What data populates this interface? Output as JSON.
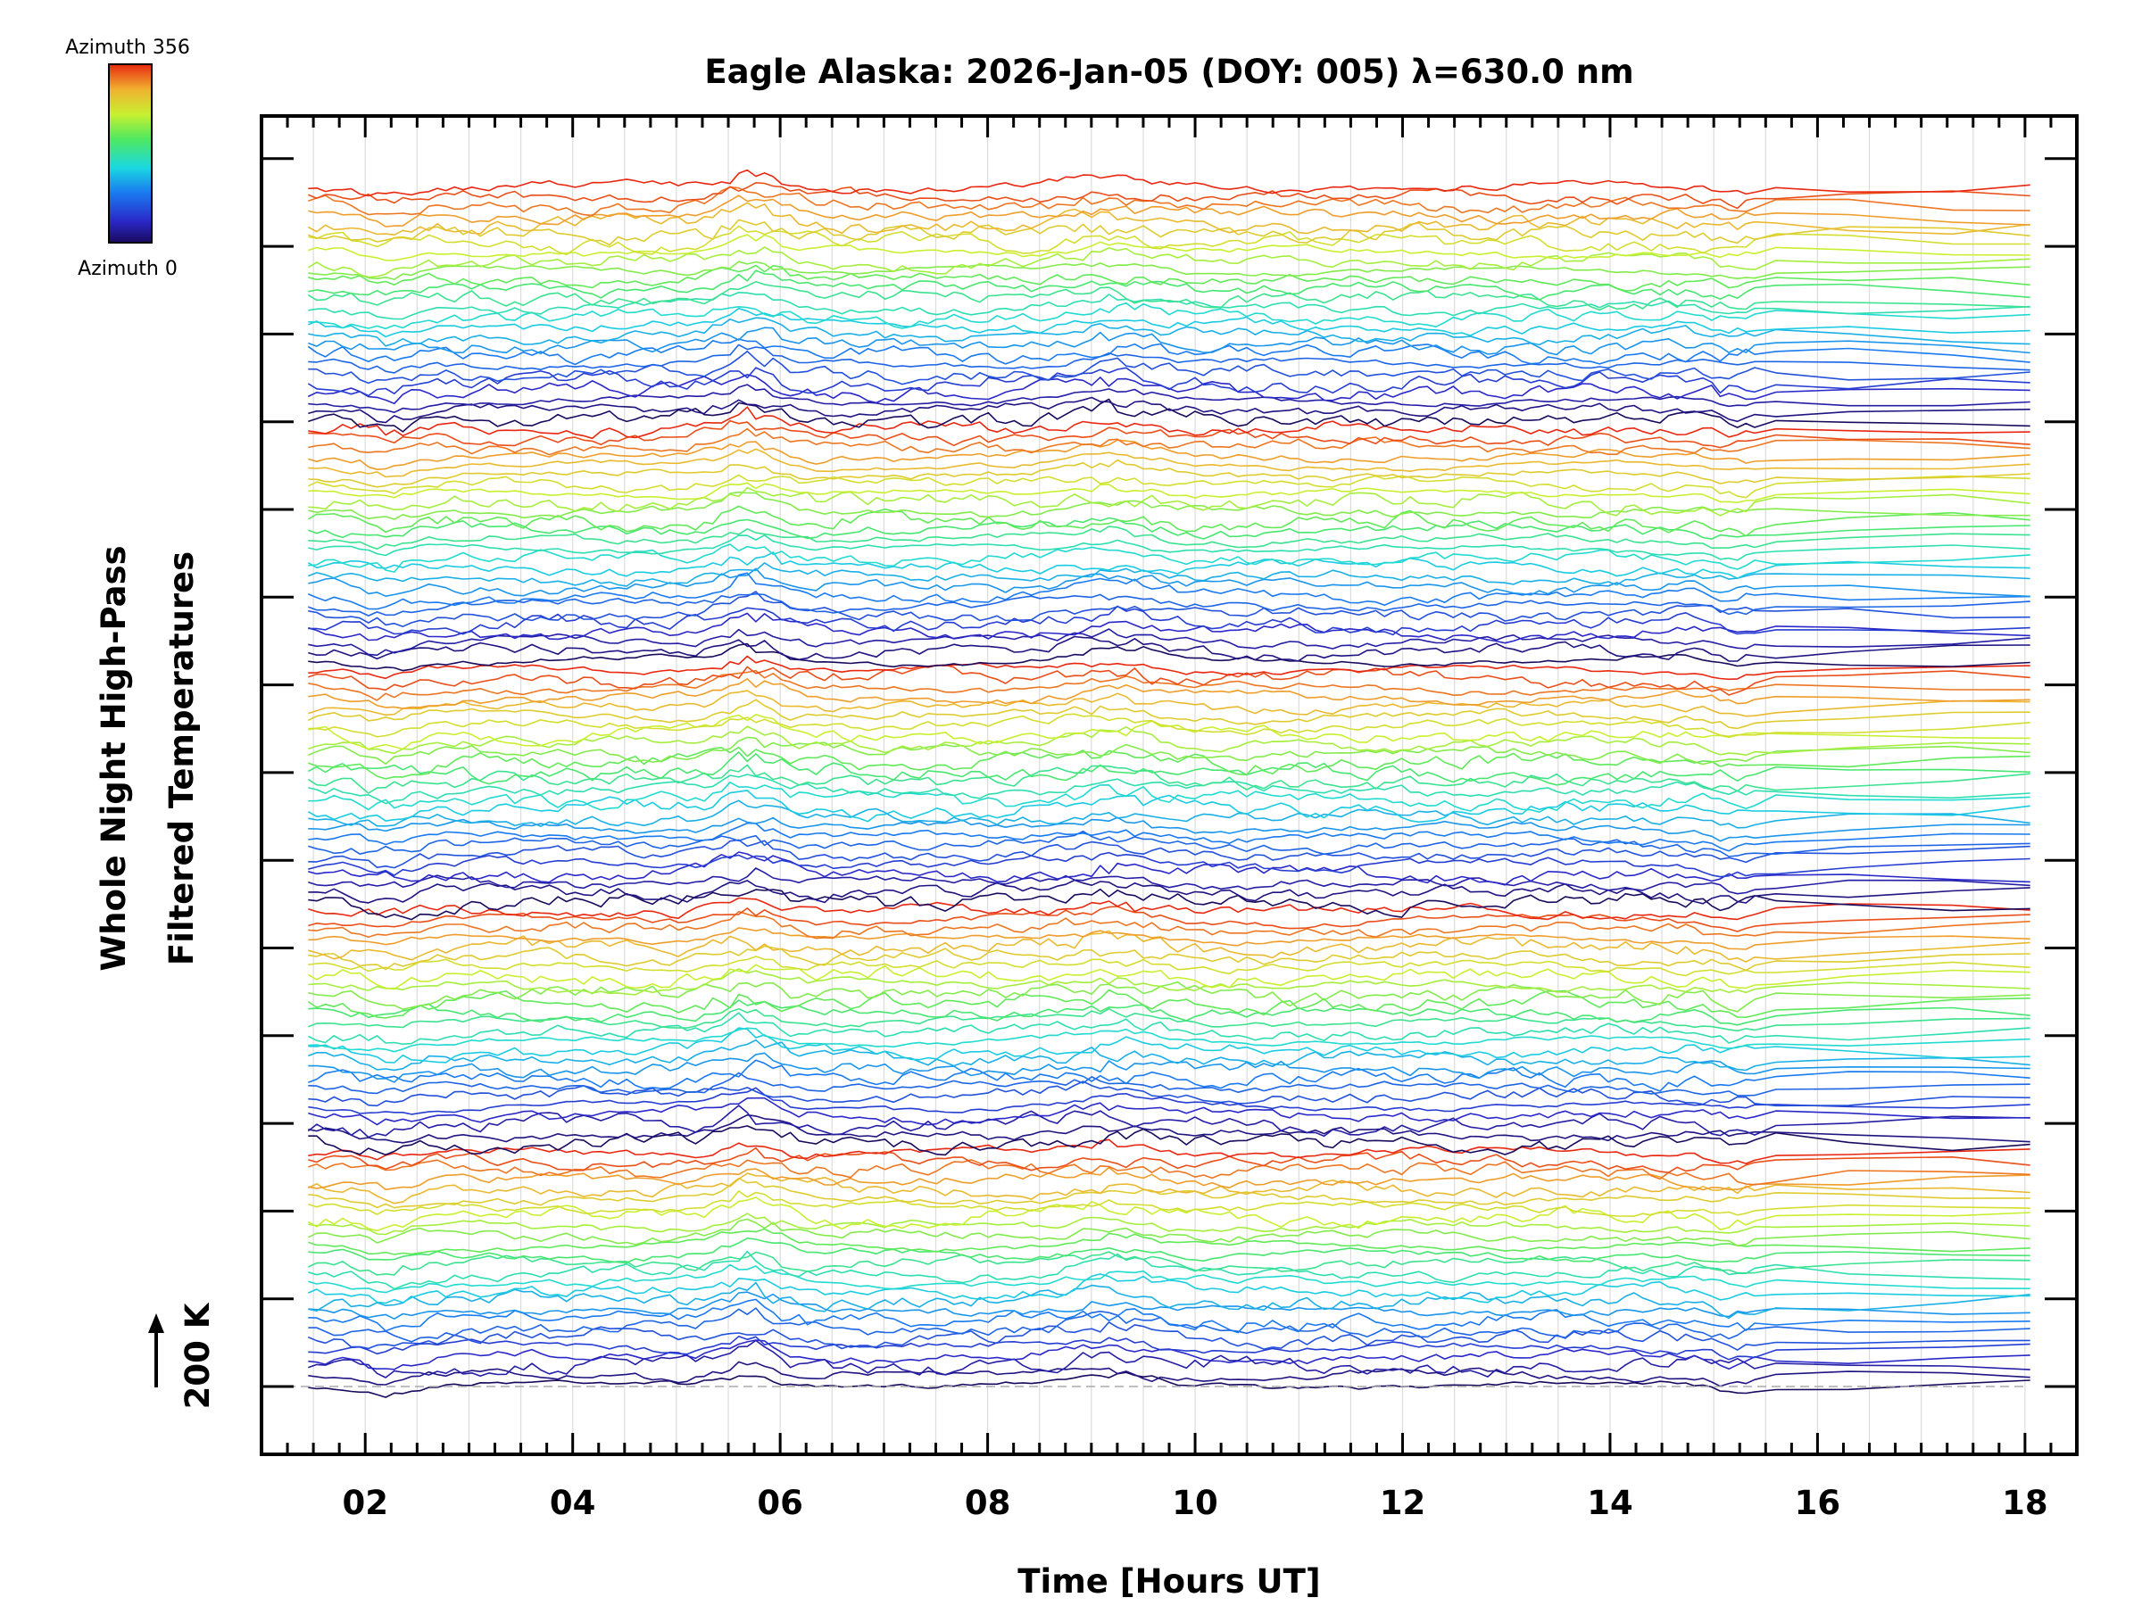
{
  "chart_data": {
    "type": "line",
    "title": "Eagle Alaska: 2026-Jan-05 (DOY: 005) λ=630.0 nm",
    "xlabel": "Time [Hours UT]",
    "ylabel_line1": "Whole Night High-Pass",
    "ylabel_line2": "Filtered Temperatures",
    "scale_label": "200 K",
    "scale_value_K": 200,
    "xlim": [
      1.0,
      18.5
    ],
    "xticks": [
      2,
      4,
      6,
      8,
      10,
      12,
      14,
      16,
      18
    ],
    "xtick_labels": [
      "02",
      "04",
      "06",
      "08",
      "10",
      "12",
      "14",
      "16",
      "18"
    ],
    "time_start": 1.45,
    "time_end": 18.05,
    "azimuth_range": [
      0,
      356
    ],
    "colorbar_top_label": "Azimuth 356",
    "colorbar_bottom_label": "Azimuth 0",
    "series_groups": 5,
    "series_per_group": 26,
    "series_description": "Stacked high-pass filtered temperature traces, one per azimuth, colored by azimuth (0 dark blue to 356 red)"
  }
}
